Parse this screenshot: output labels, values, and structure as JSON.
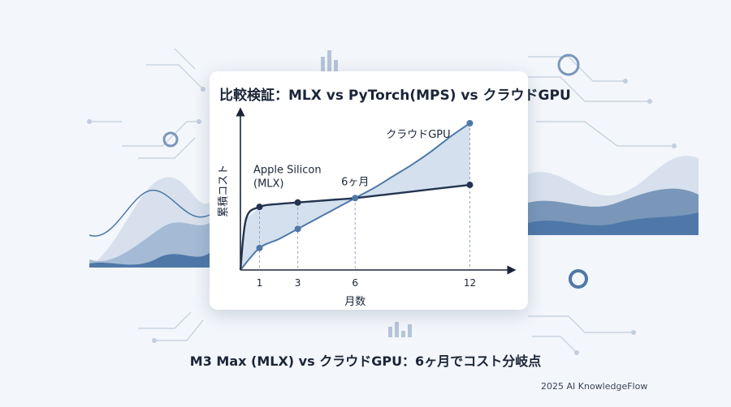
{
  "chart_data": {
    "type": "line",
    "title": "比較検証：MLX vs PyTorch(MPS) vs クラウドGPU",
    "xlabel": "月数",
    "ylabel": "累積コスト",
    "x_ticks": [
      1,
      3,
      6,
      12
    ],
    "xlim": [
      0,
      13
    ],
    "ylim": [
      0,
      100
    ],
    "series": [
      {
        "name": "Apple Silicon (MLX)",
        "label_lines": [
          "Apple Silicon",
          "(MLX)"
        ],
        "color": "#24344f",
        "x": [
          0,
          0.3,
          1,
          2,
          3,
          4,
          5,
          6,
          8,
          10,
          12
        ],
        "y": [
          0,
          35,
          43,
          45,
          46,
          47,
          48,
          49,
          52,
          55,
          58
        ],
        "markers": [
          [
            1,
            43
          ],
          [
            3,
            46
          ],
          [
            12,
            58
          ]
        ]
      },
      {
        "name": "クラウドGPU",
        "label_lines": [
          "クラウドGPU"
        ],
        "color": "#4f78a8",
        "x": [
          0,
          1,
          2,
          3,
          4,
          5,
          6,
          7,
          8,
          9,
          10,
          11,
          12
        ],
        "y": [
          0,
          15,
          21,
          28,
          35,
          42,
          49,
          56,
          64,
          72,
          81,
          91,
          100
        ],
        "markers": [
          [
            1,
            15
          ],
          [
            3,
            28
          ],
          [
            12,
            100
          ]
        ]
      }
    ],
    "annotations": [
      {
        "text": "6ヶ月",
        "x": 6,
        "y": 49
      }
    ],
    "grid": false,
    "legend": "none"
  },
  "caption": "M3 Max (MLX) vs クラウドGPU：6ヶ月でコスト分岐点",
  "credit": "2025 AI KnowledgeFlow",
  "colors": {
    "background": "#f3f6fa",
    "card": "#ffffff",
    "text": "#1b2538",
    "mlx_line": "#24344f",
    "cloud_line": "#4f78a8",
    "fill": "#c5d5e8"
  }
}
